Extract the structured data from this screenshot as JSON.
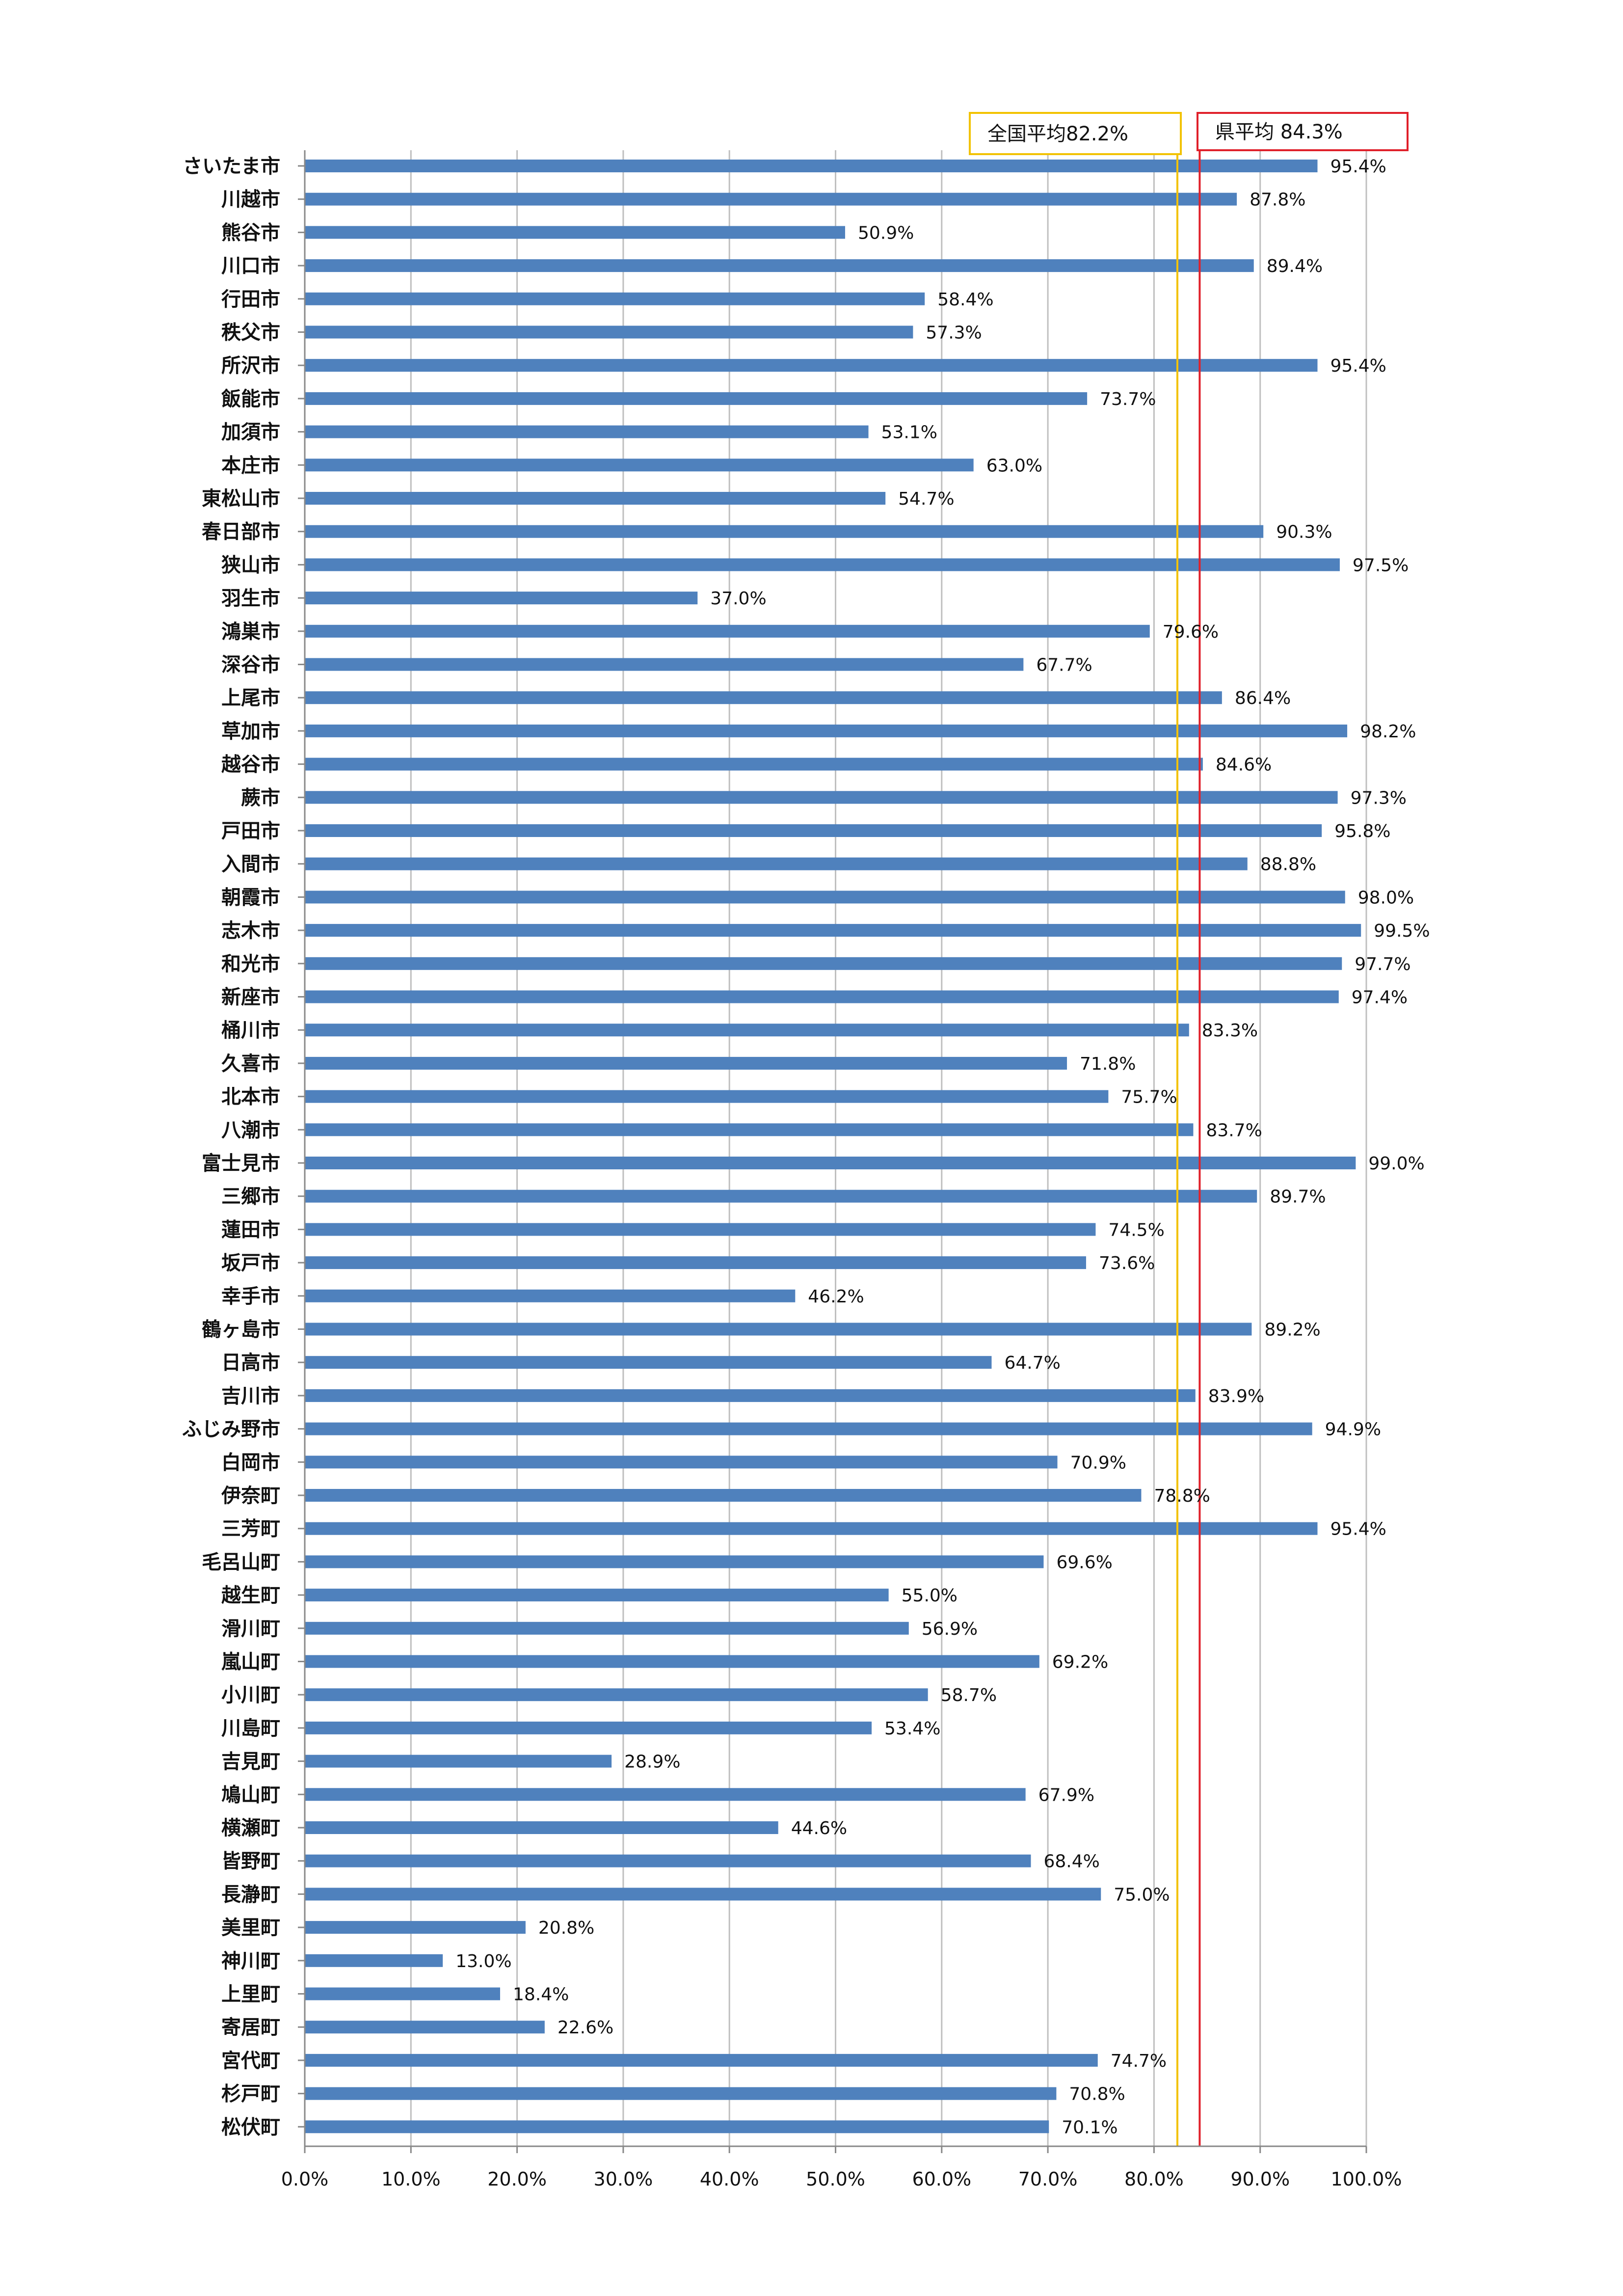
{
  "chart_data": {
    "type": "bar",
    "orientation": "horizontal",
    "categories": [
      "さいたま市",
      "川越市",
      "熊谷市",
      "川口市",
      "行田市",
      "秩父市",
      "所沢市",
      "飯能市",
      "加須市",
      "本庄市",
      "東松山市",
      "春日部市",
      "狭山市",
      "羽生市",
      "鴻巣市",
      "深谷市",
      "上尾市",
      "草加市",
      "越谷市",
      "蕨市",
      "戸田市",
      "入間市",
      "朝霞市",
      "志木市",
      "和光市",
      "新座市",
      "桶川市",
      "久喜市",
      "北本市",
      "八潮市",
      "富士見市",
      "三郷市",
      "蓮田市",
      "坂戸市",
      "幸手市",
      "鶴ヶ島市",
      "日高市",
      "吉川市",
      "ふじみ野市",
      "白岡市",
      "伊奈町",
      "三芳町",
      "毛呂山町",
      "越生町",
      "滑川町",
      "嵐山町",
      "小川町",
      "川島町",
      "吉見町",
      "鳩山町",
      "横瀬町",
      "皆野町",
      "長瀞町",
      "美里町",
      "神川町",
      "上里町",
      "寄居町",
      "宮代町",
      "杉戸町",
      "松伏町"
    ],
    "values": [
      95.4,
      87.8,
      50.9,
      89.4,
      58.4,
      57.3,
      95.4,
      73.7,
      53.1,
      63.0,
      54.7,
      90.3,
      97.5,
      37.0,
      79.6,
      67.7,
      86.4,
      98.2,
      84.6,
      97.3,
      95.8,
      88.8,
      98.0,
      99.5,
      97.7,
      97.4,
      83.3,
      71.8,
      75.7,
      83.7,
      99.0,
      89.7,
      74.5,
      73.6,
      46.2,
      89.2,
      64.7,
      83.9,
      94.9,
      70.9,
      78.8,
      95.4,
      69.6,
      55.0,
      56.9,
      69.2,
      58.7,
      53.4,
      28.9,
      67.9,
      44.6,
      68.4,
      75.0,
      20.8,
      13.0,
      18.4,
      22.6,
      74.7,
      70.8,
      70.1
    ],
    "value_labels": [
      "95.4%",
      "87.8%",
      "50.9%",
      "89.4%",
      "58.4%",
      "57.3%",
      "95.4%",
      "73.7%",
      "53.1%",
      "63.0%",
      "54.7%",
      "90.3%",
      "97.5%",
      "37.0%",
      "79.6%",
      "67.7%",
      "86.4%",
      "98.2%",
      "84.6%",
      "97.3%",
      "95.8%",
      "88.8%",
      "98.0%",
      "99.5%",
      "97.7%",
      "97.4%",
      "83.3%",
      "71.8%",
      "75.7%",
      "83.7%",
      "99.0%",
      "89.7%",
      "74.5%",
      "73.6%",
      "46.2%",
      "89.2%",
      "64.7%",
      "83.9%",
      "94.9%",
      "70.9%",
      "78.8%",
      "95.4%",
      "69.6%",
      "55.0%",
      "56.9%",
      "69.2%",
      "58.7%",
      "53.4%",
      "28.9%",
      "67.9%",
      "44.6%",
      "68.4%",
      "75.0%",
      "20.8%",
      "13.0%",
      "18.4%",
      "22.6%",
      "74.7%",
      "70.8%",
      "70.1%"
    ],
    "xlim": [
      0,
      100
    ],
    "x_ticks": [
      0,
      10,
      20,
      30,
      40,
      50,
      60,
      70,
      80,
      90,
      100
    ],
    "x_tick_labels": [
      "0.0%",
      "10.0%",
      "20.0%",
      "30.0%",
      "40.0%",
      "50.0%",
      "60.0%",
      "70.0%",
      "80.0%",
      "90.0%",
      "100.0%"
    ],
    "grid": true,
    "bar_color": "#4F81BD",
    "reference_lines": [
      {
        "label": "全国平均82.2%",
        "value": 82.2,
        "color": "#F2C200"
      },
      {
        "label": "県平均 84.3%",
        "value": 84.3,
        "color": "#E0202A"
      }
    ]
  }
}
